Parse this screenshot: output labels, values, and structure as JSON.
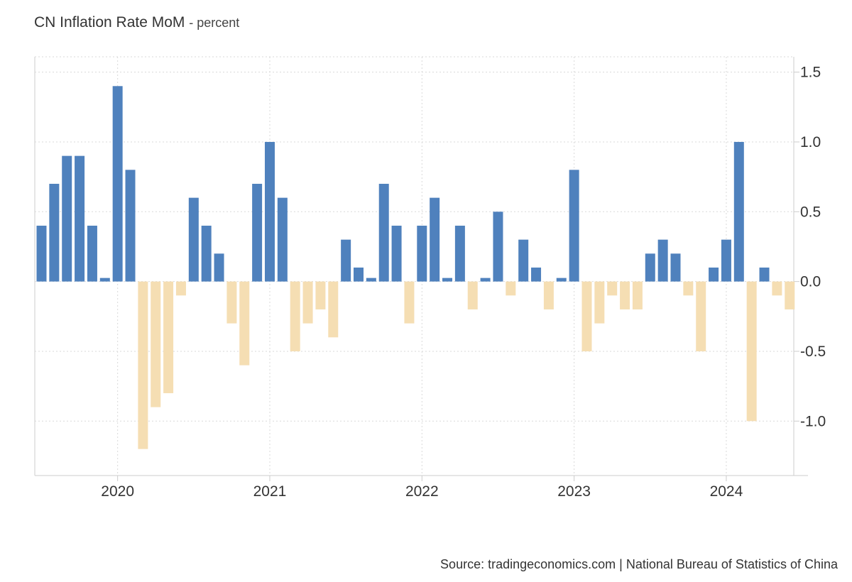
{
  "title": "CN Inflation Rate MoM",
  "subtitle": "- percent",
  "source": "Source: tradingeconomics.com | National Bureau of Statistics of China",
  "colors": {
    "positive": "#4f81bd",
    "negative": "#f5deb3",
    "grid": "#d9d9d9",
    "axis": "#cccccc"
  },
  "chart_data": {
    "type": "bar",
    "x": [
      "2019-07",
      "2019-08",
      "2019-09",
      "2019-10",
      "2019-11",
      "2019-12",
      "2020-01",
      "2020-02",
      "2020-03",
      "2020-04",
      "2020-05",
      "2020-06",
      "2020-07",
      "2020-08",
      "2020-09",
      "2020-10",
      "2020-11",
      "2020-12",
      "2021-01",
      "2021-02",
      "2021-03",
      "2021-04",
      "2021-05",
      "2021-06",
      "2021-07",
      "2021-08",
      "2021-09",
      "2021-10",
      "2021-11",
      "2021-12",
      "2022-01",
      "2022-02",
      "2022-03",
      "2022-04",
      "2022-05",
      "2022-06",
      "2022-07",
      "2022-08",
      "2022-09",
      "2022-10",
      "2022-11",
      "2022-12",
      "2023-01",
      "2023-02",
      "2023-03",
      "2023-04",
      "2023-05",
      "2023-06",
      "2023-07",
      "2023-08",
      "2023-09",
      "2023-10",
      "2023-11",
      "2023-12",
      "2024-01",
      "2024-02",
      "2024-03",
      "2024-04",
      "2024-05",
      "2024-06"
    ],
    "values": [
      0.4,
      0.7,
      0.9,
      0.9,
      0.4,
      0.0,
      1.4,
      0.8,
      -1.2,
      -0.9,
      -0.8,
      -0.1,
      0.6,
      0.4,
      0.2,
      -0.3,
      -0.6,
      0.7,
      1.0,
      0.6,
      -0.5,
      -0.3,
      -0.2,
      -0.4,
      0.3,
      0.1,
      0.0,
      0.7,
      0.4,
      -0.3,
      0.4,
      0.6,
      0.0,
      0.4,
      -0.2,
      0.0,
      0.5,
      -0.1,
      0.3,
      0.1,
      -0.2,
      0.0,
      0.8,
      -0.5,
      -0.3,
      -0.1,
      -0.2,
      -0.2,
      0.2,
      0.3,
      0.2,
      -0.1,
      -0.5,
      0.1,
      0.3,
      1.0,
      -1.0,
      0.1,
      -0.1,
      -0.2
    ],
    "x_tick_labels": [
      "2020",
      "2021",
      "2022",
      "2023",
      "2024"
    ],
    "y_tick_labels": [
      "1.5",
      "1.0",
      "0.5",
      "0.0",
      "-0.5",
      "-1.0"
    ],
    "y_ticks": [
      1.5,
      1.0,
      0.5,
      0.0,
      -0.5,
      -1.0
    ],
    "ylim": [
      -1.39,
      1.61
    ],
    "xlabel": "",
    "ylabel": "",
    "grid": true,
    "y_axis_position": "right"
  }
}
